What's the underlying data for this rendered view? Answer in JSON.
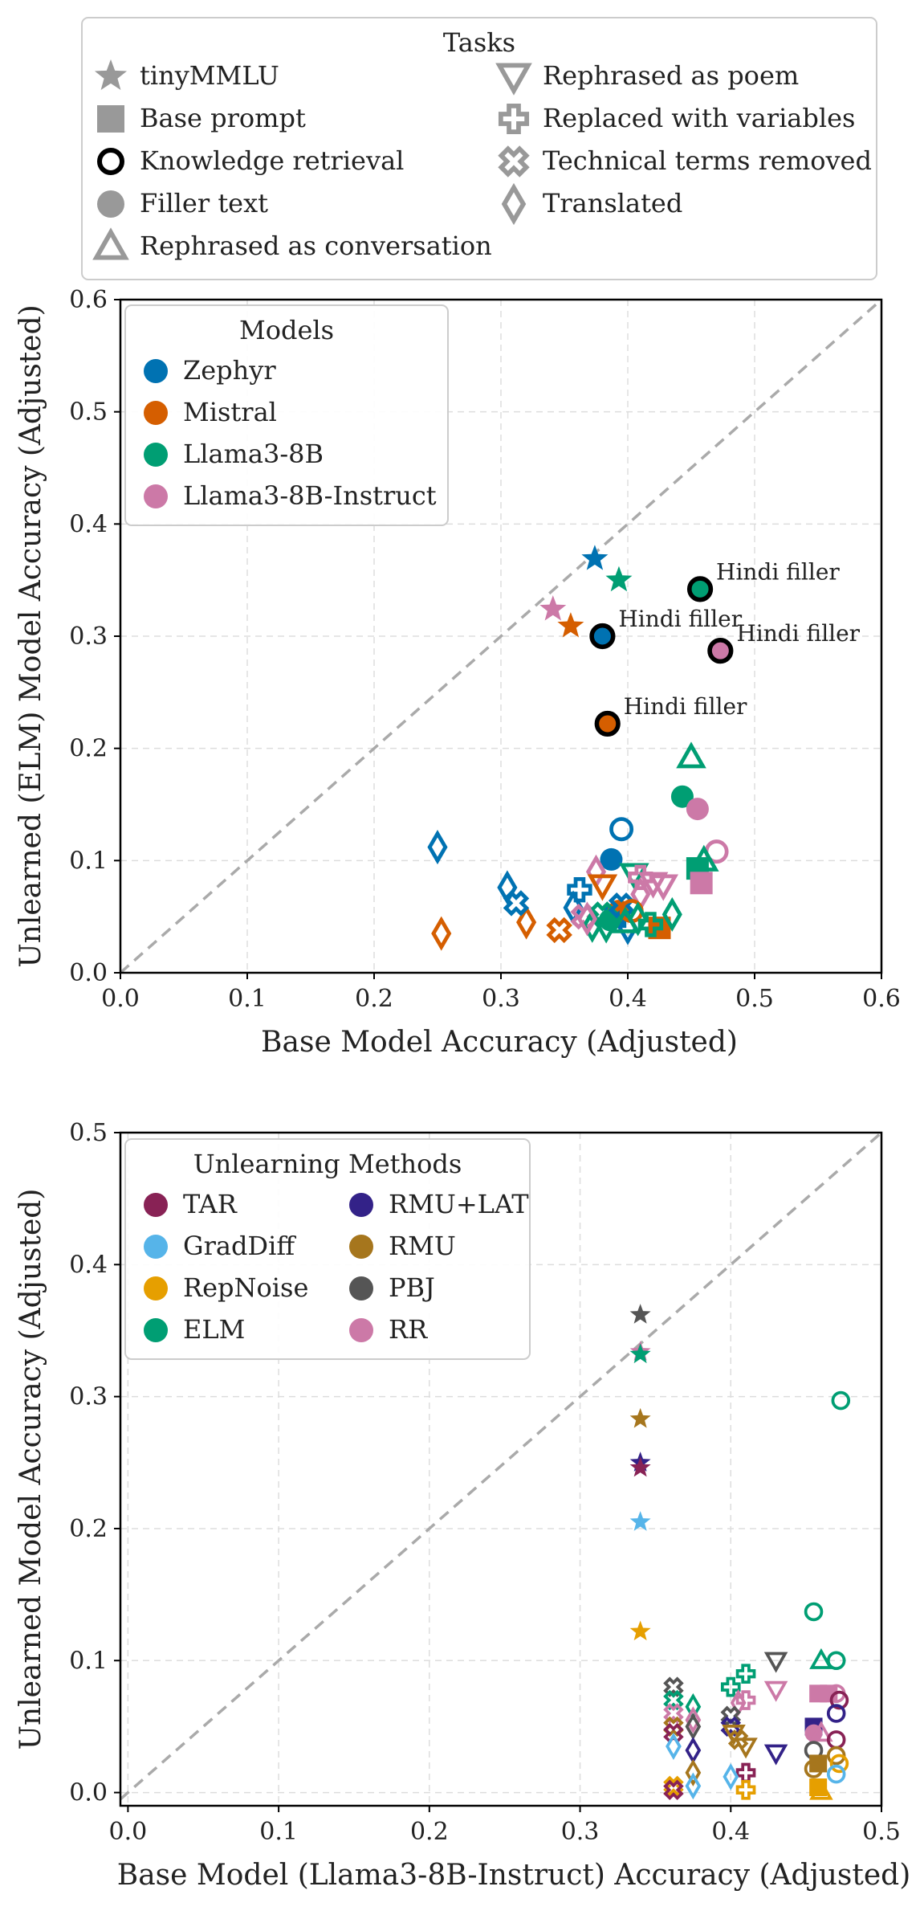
{
  "task_legend": {
    "title": "Tasks",
    "items": [
      {
        "marker": "star",
        "label": "tinyMMLU"
      },
      {
        "marker": "square",
        "label": "Base prompt"
      },
      {
        "marker": "ring",
        "label": "Knowledge retrieval"
      },
      {
        "marker": "circle",
        "label": "Filler text"
      },
      {
        "marker": "triangle",
        "label": "Rephrased as conversation"
      },
      {
        "marker": "triangle-down",
        "label": "Rephrased as poem"
      },
      {
        "marker": "plus",
        "label": "Replaced with variables"
      },
      {
        "marker": "x",
        "label": "Technical terms removed"
      },
      {
        "marker": "diamond",
        "label": "Translated"
      }
    ]
  },
  "chart_data": [
    {
      "type": "scatter",
      "xlabel": "Base Model Accuracy (Adjusted)",
      "ylabel": "Unlearned (ELM) Model Accuracy (Adjusted)",
      "xlim": [
        0,
        0.6
      ],
      "ylim": [
        0,
        0.6
      ],
      "xticks": [
        "0.0",
        "0.1",
        "0.2",
        "0.3",
        "0.4",
        "0.5",
        "0.6"
      ],
      "yticks": [
        "0.0",
        "0.1",
        "0.2",
        "0.3",
        "0.4",
        "0.5",
        "0.6"
      ],
      "grid": true,
      "diagonal": true,
      "legend": {
        "title": "Models",
        "position": "top-left",
        "items": [
          {
            "name": "Zephyr",
            "color": "#0072b2"
          },
          {
            "name": "Mistral",
            "color": "#d55e00"
          },
          {
            "name": "Llama3-8B",
            "color": "#009e73"
          },
          {
            "name": "Llama3-8B-Instruct",
            "color": "#cc79a7"
          }
        ]
      },
      "annotation_text": "Hindi filler",
      "points": [
        {
          "x": 0.374,
          "y": 0.369,
          "m": "star",
          "c": "Zephyr"
        },
        {
          "x": 0.393,
          "y": 0.35,
          "m": "star",
          "c": "Llama3-8B"
        },
        {
          "x": 0.341,
          "y": 0.324,
          "m": "star",
          "c": "Llama3-8B-Instruct"
        },
        {
          "x": 0.355,
          "y": 0.309,
          "m": "star",
          "c": "Mistral"
        },
        {
          "x": 0.457,
          "y": 0.342,
          "m": "ring",
          "c": "Llama3-8B",
          "annot": true
        },
        {
          "x": 0.38,
          "y": 0.3,
          "m": "ring",
          "c": "Zephyr",
          "annot": true
        },
        {
          "x": 0.473,
          "y": 0.287,
          "m": "ring",
          "c": "Llama3-8B-Instruct",
          "annot": true
        },
        {
          "x": 0.384,
          "y": 0.222,
          "m": "ring",
          "c": "Mistral",
          "annot": true
        },
        {
          "x": 0.45,
          "y": 0.192,
          "m": "triangle",
          "c": "Llama3-8B"
        },
        {
          "x": 0.443,
          "y": 0.157,
          "m": "circle",
          "c": "Llama3-8B"
        },
        {
          "x": 0.455,
          "y": 0.146,
          "m": "circle",
          "c": "Llama3-8B-Instruct"
        },
        {
          "x": 0.395,
          "y": 0.128,
          "m": "circle-open",
          "c": "Zephyr"
        },
        {
          "x": 0.47,
          "y": 0.108,
          "m": "circle-open",
          "c": "Llama3-8B-Instruct"
        },
        {
          "x": 0.387,
          "y": 0.101,
          "m": "circle",
          "c": "Zephyr"
        },
        {
          "x": 0.46,
          "y": 0.1,
          "m": "triangle",
          "c": "Llama3-8B"
        },
        {
          "x": 0.455,
          "y": 0.093,
          "m": "square",
          "c": "Llama3-8B"
        },
        {
          "x": 0.458,
          "y": 0.08,
          "m": "square",
          "c": "Llama3-8B-Instruct"
        },
        {
          "x": 0.425,
          "y": 0.04,
          "m": "square",
          "c": "Mistral"
        },
        {
          "x": 0.39,
          "y": 0.05,
          "m": "square",
          "c": "Zephyr"
        },
        {
          "x": 0.393,
          "y": 0.055,
          "m": "circle",
          "c": "Mistral"
        },
        {
          "x": 0.386,
          "y": 0.047,
          "m": "circle",
          "c": "Llama3-8B"
        },
        {
          "x": 0.25,
          "y": 0.112,
          "m": "diamond",
          "c": "Zephyr"
        },
        {
          "x": 0.253,
          "y": 0.035,
          "m": "diamond",
          "c": "Mistral"
        },
        {
          "x": 0.305,
          "y": 0.076,
          "m": "diamond",
          "c": "Zephyr"
        },
        {
          "x": 0.32,
          "y": 0.045,
          "m": "diamond",
          "c": "Mistral"
        },
        {
          "x": 0.312,
          "y": 0.062,
          "m": "x",
          "c": "Zephyr"
        },
        {
          "x": 0.346,
          "y": 0.038,
          "m": "x",
          "c": "Mistral"
        },
        {
          "x": 0.362,
          "y": 0.074,
          "m": "plus",
          "c": "Zephyr"
        },
        {
          "x": 0.357,
          "y": 0.058,
          "m": "diamond",
          "c": "Zephyr"
        },
        {
          "x": 0.375,
          "y": 0.09,
          "m": "diamond",
          "c": "Llama3-8B-Instruct"
        },
        {
          "x": 0.38,
          "y": 0.078,
          "m": "triangle-down",
          "c": "Mistral"
        },
        {
          "x": 0.365,
          "y": 0.05,
          "m": "x",
          "c": "Llama3-8B-Instruct"
        },
        {
          "x": 0.372,
          "y": 0.042,
          "m": "diamond",
          "c": "Llama3-8B"
        },
        {
          "x": 0.38,
          "y": 0.052,
          "m": "x",
          "c": "Llama3-8B"
        },
        {
          "x": 0.383,
          "y": 0.04,
          "m": "triangle-down",
          "c": "Llama3-8B"
        },
        {
          "x": 0.395,
          "y": 0.06,
          "m": "x",
          "c": "Zephyr"
        },
        {
          "x": 0.4,
          "y": 0.04,
          "m": "diamond",
          "c": "Zephyr"
        },
        {
          "x": 0.405,
          "y": 0.088,
          "m": "triangle-down",
          "c": "Llama3-8B"
        },
        {
          "x": 0.41,
          "y": 0.085,
          "m": "plus",
          "c": "Llama3-8B-Instruct"
        },
        {
          "x": 0.42,
          "y": 0.08,
          "m": "triangle-down",
          "c": "Llama3-8B-Instruct"
        },
        {
          "x": 0.428,
          "y": 0.078,
          "m": "triangle-down",
          "c": "Llama3-8B-Instruct"
        },
        {
          "x": 0.41,
          "y": 0.07,
          "m": "diamond",
          "c": "Llama3-8B-Instruct"
        },
        {
          "x": 0.403,
          "y": 0.055,
          "m": "circle-open",
          "c": "Mistral"
        },
        {
          "x": 0.408,
          "y": 0.048,
          "m": "diamond",
          "c": "Llama3-8B"
        },
        {
          "x": 0.418,
          "y": 0.043,
          "m": "plus",
          "c": "Llama3-8B"
        },
        {
          "x": 0.435,
          "y": 0.052,
          "m": "diamond",
          "c": "Llama3-8B"
        },
        {
          "x": 0.398,
          "y": 0.045,
          "m": "triangle",
          "c": "Llama3-8B"
        },
        {
          "x": 0.368,
          "y": 0.048,
          "m": "diamond",
          "c": "Llama3-8B-Instruct"
        }
      ]
    },
    {
      "type": "scatter",
      "xlabel": "Base Model (Llama3-8B-Instruct) Accuracy (Adjusted)",
      "ylabel": "Unlearned Model Accuracy (Adjusted)",
      "xlim": [
        -0.005,
        0.5
      ],
      "ylim": [
        -0.01,
        0.5
      ],
      "xticks": [
        "0.0",
        "0.1",
        "0.2",
        "0.3",
        "0.4",
        "0.5"
      ],
      "yticks": [
        "0.0",
        "0.1",
        "0.2",
        "0.3",
        "0.4",
        "0.5"
      ],
      "grid": true,
      "diagonal": true,
      "legend": {
        "title": "Unlearning Methods",
        "position": "top-left",
        "columns": 2,
        "items": [
          {
            "name": "TAR",
            "color": "#882255"
          },
          {
            "name": "GradDiff",
            "color": "#56b4e9"
          },
          {
            "name": "RepNoise",
            "color": "#e69f00"
          },
          {
            "name": "ELM",
            "color": "#009e73"
          },
          {
            "name": "RMU+LAT",
            "color": "#332288"
          },
          {
            "name": "RMU",
            "color": "#a6761d"
          },
          {
            "name": "PBJ",
            "color": "#555555"
          },
          {
            "name": "RR",
            "color": "#cc79a7"
          }
        ]
      },
      "points": [
        {
          "x": 0.34,
          "y": 0.362,
          "m": "star",
          "c": "PBJ"
        },
        {
          "x": 0.34,
          "y": 0.334,
          "m": "star",
          "c": "RR"
        },
        {
          "x": 0.34,
          "y": 0.332,
          "m": "star",
          "c": "ELM"
        },
        {
          "x": 0.34,
          "y": 0.283,
          "m": "star",
          "c": "RMU"
        },
        {
          "x": 0.34,
          "y": 0.25,
          "m": "star",
          "c": "RMU+LAT"
        },
        {
          "x": 0.34,
          "y": 0.246,
          "m": "star",
          "c": "TAR"
        },
        {
          "x": 0.34,
          "y": 0.205,
          "m": "star",
          "c": "GradDiff"
        },
        {
          "x": 0.34,
          "y": 0.122,
          "m": "star",
          "c": "RepNoise"
        },
        {
          "x": 0.473,
          "y": 0.297,
          "m": "circle-open",
          "c": "ELM"
        },
        {
          "x": 0.455,
          "y": 0.137,
          "m": "circle-open",
          "c": "ELM"
        },
        {
          "x": 0.47,
          "y": 0.1,
          "m": "circle-open",
          "c": "ELM"
        },
        {
          "x": 0.46,
          "y": 0.1,
          "m": "triangle",
          "c": "ELM"
        },
        {
          "x": 0.43,
          "y": 0.1,
          "m": "triangle-down",
          "c": "PBJ"
        },
        {
          "x": 0.41,
          "y": 0.09,
          "m": "plus",
          "c": "ELM"
        },
        {
          "x": 0.4,
          "y": 0.08,
          "m": "plus",
          "c": "ELM"
        },
        {
          "x": 0.43,
          "y": 0.078,
          "m": "triangle-down",
          "c": "RR"
        },
        {
          "x": 0.458,
          "y": 0.075,
          "m": "square",
          "c": "RR"
        },
        {
          "x": 0.465,
          "y": 0.075,
          "m": "square",
          "c": "RR"
        },
        {
          "x": 0.47,
          "y": 0.075,
          "m": "circle-open",
          "c": "RR"
        },
        {
          "x": 0.472,
          "y": 0.07,
          "m": "circle-open",
          "c": "TAR"
        },
        {
          "x": 0.41,
          "y": 0.07,
          "m": "plus",
          "c": "RR"
        },
        {
          "x": 0.405,
          "y": 0.068,
          "m": "diamond",
          "c": "RR"
        },
        {
          "x": 0.362,
          "y": 0.08,
          "m": "x",
          "c": "PBJ"
        },
        {
          "x": 0.362,
          "y": 0.07,
          "m": "x",
          "c": "ELM"
        },
        {
          "x": 0.362,
          "y": 0.06,
          "m": "x",
          "c": "RR"
        },
        {
          "x": 0.362,
          "y": 0.05,
          "m": "x",
          "c": "RMU"
        },
        {
          "x": 0.362,
          "y": 0.045,
          "m": "x",
          "c": "TAR"
        },
        {
          "x": 0.362,
          "y": 0.035,
          "m": "diamond",
          "c": "GradDiff"
        },
        {
          "x": 0.362,
          "y": 0.005,
          "m": "x",
          "c": "RepNoise"
        },
        {
          "x": 0.362,
          "y": 0.002,
          "m": "x",
          "c": "TAR"
        },
        {
          "x": 0.375,
          "y": 0.065,
          "m": "diamond",
          "c": "ELM"
        },
        {
          "x": 0.375,
          "y": 0.055,
          "m": "diamond",
          "c": "RR"
        },
        {
          "x": 0.375,
          "y": 0.05,
          "m": "diamond",
          "c": "PBJ"
        },
        {
          "x": 0.375,
          "y": 0.032,
          "m": "diamond",
          "c": "RMU+LAT"
        },
        {
          "x": 0.375,
          "y": 0.015,
          "m": "diamond",
          "c": "RMU"
        },
        {
          "x": 0.375,
          "y": 0.005,
          "m": "diamond",
          "c": "GradDiff"
        },
        {
          "x": 0.4,
          "y": 0.058,
          "m": "x",
          "c": "PBJ"
        },
        {
          "x": 0.4,
          "y": 0.05,
          "m": "x",
          "c": "RMU+LAT"
        },
        {
          "x": 0.402,
          "y": 0.045,
          "m": "triangle-down",
          "c": "RMU"
        },
        {
          "x": 0.405,
          "y": 0.04,
          "m": "x",
          "c": "RMU"
        },
        {
          "x": 0.41,
          "y": 0.035,
          "m": "triangle-down",
          "c": "RMU"
        },
        {
          "x": 0.41,
          "y": 0.015,
          "m": "plus",
          "c": "TAR"
        },
        {
          "x": 0.4,
          "y": 0.012,
          "m": "diamond",
          "c": "GradDiff"
        },
        {
          "x": 0.41,
          "y": 0.002,
          "m": "plus",
          "c": "RepNoise"
        },
        {
          "x": 0.43,
          "y": 0.03,
          "m": "triangle-down",
          "c": "RMU+LAT"
        },
        {
          "x": 0.455,
          "y": 0.05,
          "m": "square",
          "c": "RMU+LAT"
        },
        {
          "x": 0.455,
          "y": 0.045,
          "m": "circle",
          "c": "RR"
        },
        {
          "x": 0.46,
          "y": 0.045,
          "m": "triangle",
          "c": "RR"
        },
        {
          "x": 0.455,
          "y": 0.032,
          "m": "circle-open",
          "c": "PBJ"
        },
        {
          "x": 0.458,
          "y": 0.022,
          "m": "square",
          "c": "RMU"
        },
        {
          "x": 0.455,
          "y": 0.018,
          "m": "circle-open",
          "c": "RMU"
        },
        {
          "x": 0.47,
          "y": 0.06,
          "m": "circle-open",
          "c": "RMU+LAT"
        },
        {
          "x": 0.47,
          "y": 0.04,
          "m": "circle-open",
          "c": "TAR"
        },
        {
          "x": 0.47,
          "y": 0.028,
          "m": "circle-open",
          "c": "RMU"
        },
        {
          "x": 0.472,
          "y": 0.022,
          "m": "circle-open",
          "c": "RepNoise"
        },
        {
          "x": 0.47,
          "y": 0.014,
          "m": "circle-open",
          "c": "GradDiff"
        },
        {
          "x": 0.458,
          "y": 0.004,
          "m": "square",
          "c": "RepNoise"
        },
        {
          "x": 0.46,
          "y": 0.001,
          "m": "triangle",
          "c": "RepNoise"
        }
      ]
    }
  ]
}
